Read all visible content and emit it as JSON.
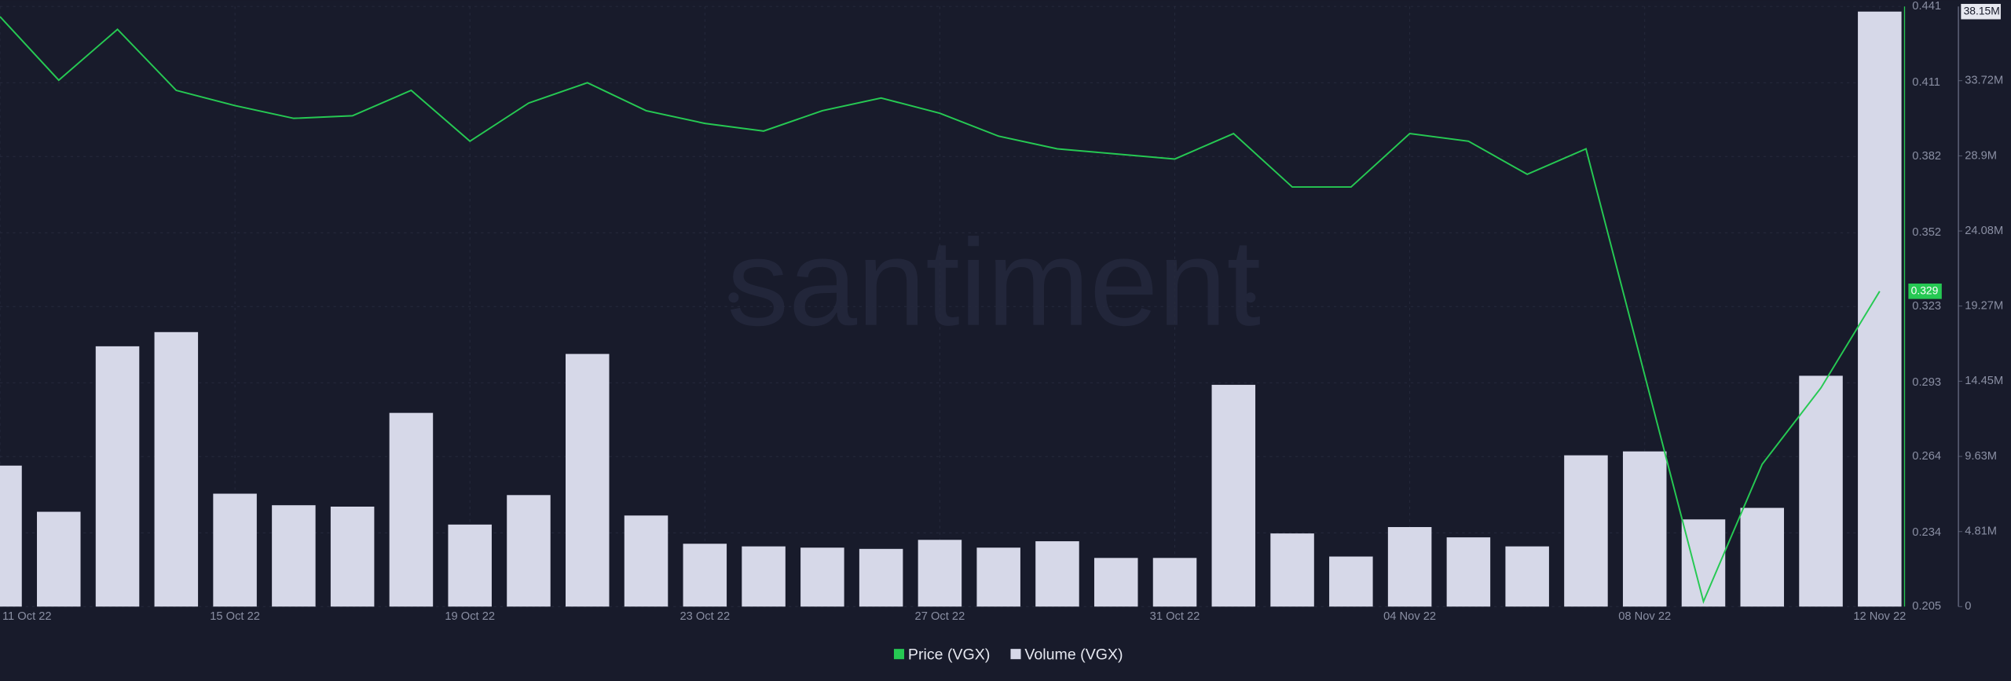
{
  "chart_data": {
    "type": "bar_line",
    "watermark": "santiment",
    "categories": [
      "11 Oct 22",
      null,
      null,
      null,
      "15 Oct 22",
      null,
      null,
      null,
      "19 Oct 22",
      null,
      null,
      null,
      "23 Oct 22",
      null,
      null,
      null,
      "27 Oct 22",
      null,
      null,
      null,
      "31 Oct 22",
      null,
      null,
      null,
      "04 Nov 22",
      null,
      null,
      null,
      "08 Nov 22",
      null,
      null,
      null,
      "12 Nov 22"
    ],
    "series": [
      {
        "name": "Price (VGX)",
        "color": "#26c953",
        "type": "line",
        "values": [
          0.437,
          0.412,
          0.432,
          0.408,
          0.402,
          0.397,
          0.398,
          0.408,
          0.388,
          0.403,
          0.411,
          0.4,
          0.395,
          0.392,
          0.4,
          0.405,
          0.399,
          0.39,
          0.385,
          0.383,
          0.381,
          0.391,
          0.37,
          0.37,
          0.391,
          0.388,
          0.375,
          0.385,
          0.296,
          0.207,
          0.261,
          0.291,
          0.329
        ]
      },
      {
        "name": "Volume (VGX)",
        "color": "#d6d8e8",
        "type": "bar",
        "axis": "y2",
        "values": [
          9.04,
          6.08,
          16.69,
          17.6,
          7.24,
          6.5,
          6.41,
          12.42,
          5.26,
          7.15,
          16.2,
          5.84,
          4.03,
          3.86,
          3.78,
          3.7,
          4.28,
          3.78,
          4.19,
          3.12,
          3.12,
          14.22,
          4.69,
          3.21,
          5.1,
          4.44,
          3.86,
          9.7,
          9.95,
          5.59,
          6.33,
          14.8,
          38.15
        ],
        "value_labels": [
          null,
          null,
          null,
          null,
          null,
          null,
          null,
          null,
          null,
          null,
          null,
          null,
          null,
          null,
          null,
          null,
          null,
          null,
          null,
          null,
          null,
          null,
          null,
          null,
          null,
          null,
          null,
          null,
          null,
          null,
          null,
          null,
          "38.15M"
        ]
      }
    ],
    "ylim": [
      0.205,
      0.441
    ],
    "yticks": [
      0.205,
      0.234,
      0.264,
      0.293,
      0.323,
      0.352,
      0.382,
      0.411,
      0.441
    ],
    "y2lim": [
      0,
      38.48
    ],
    "y2ticks": [
      0,
      {
        "value": 4.81,
        "label": "4.81M"
      },
      {
        "value": 9.63,
        "label": "9.63M"
      },
      {
        "value": 14.45,
        "label": "14.45M"
      },
      {
        "value": 19.27,
        "label": "19.27M"
      },
      {
        "value": 24.08,
        "label": "24.08M"
      },
      {
        "value": 28.9,
        "label": "28.9M"
      },
      {
        "value": 33.72,
        "label": "33.72M"
      }
    ],
    "grid": true
  }
}
